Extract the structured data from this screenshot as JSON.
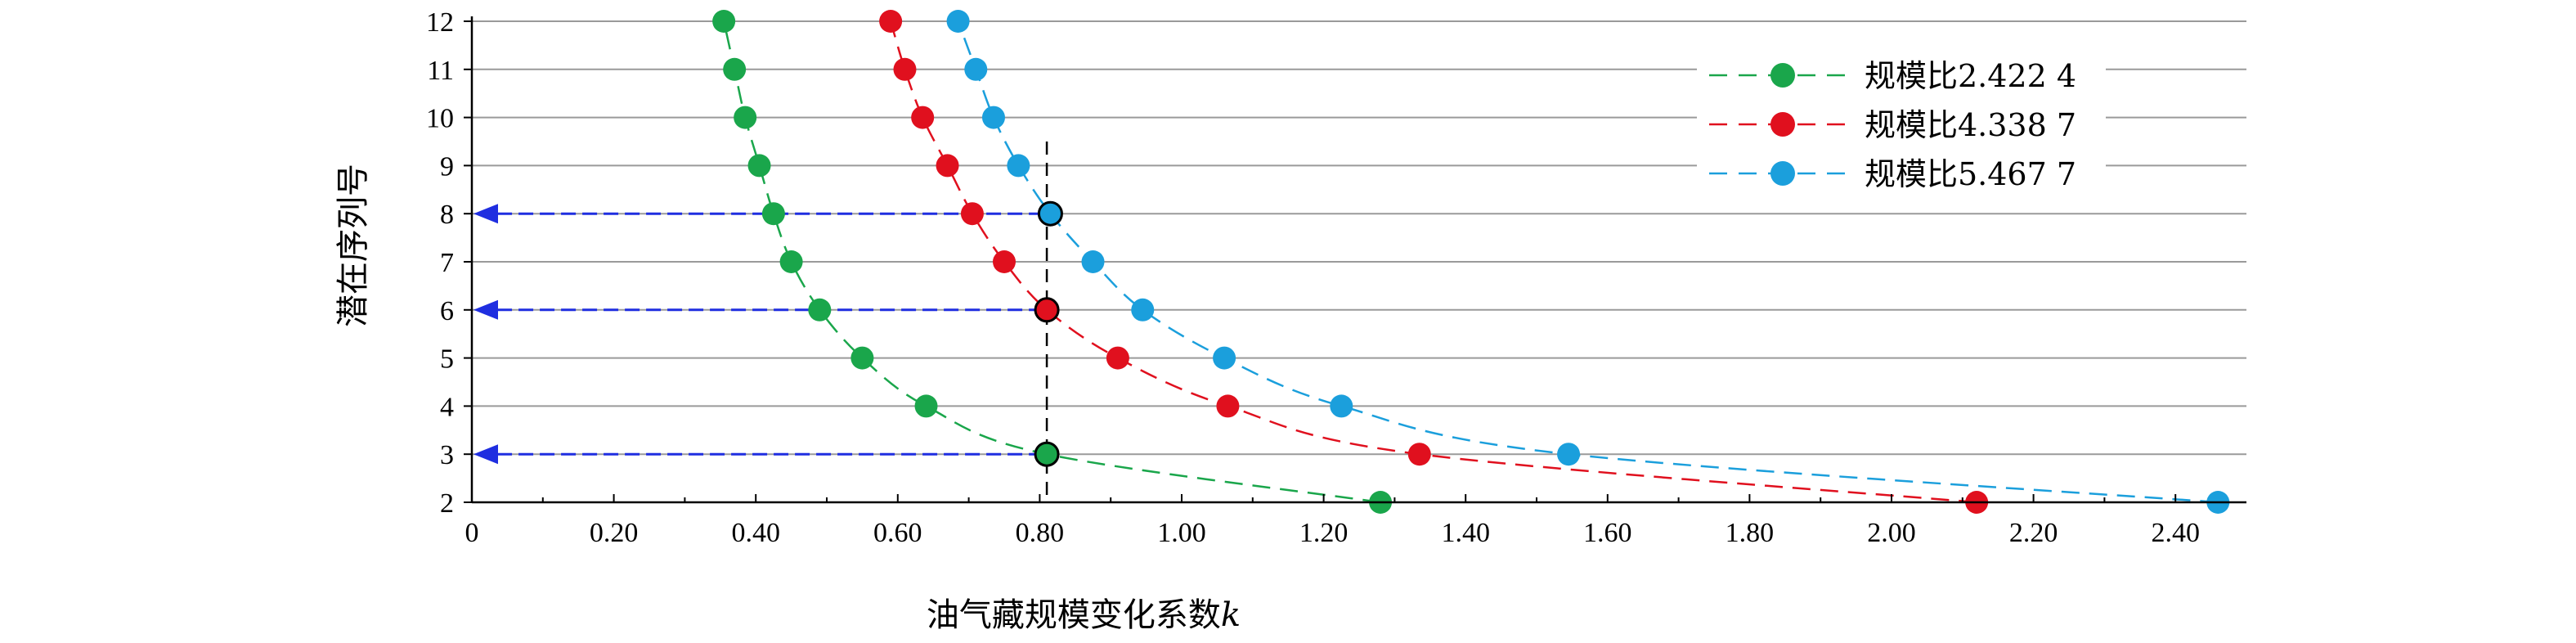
{
  "chart_data": {
    "type": "line",
    "xlabel": "油气藏规模变化系数",
    "xlabel_var": "k",
    "ylabel": "潜在序列号",
    "xlim": [
      0,
      2.5
    ],
    "ylim": [
      2,
      12
    ],
    "x_ticks": [
      0,
      0.2,
      0.4,
      0.6,
      0.8,
      1.0,
      1.2,
      1.4,
      1.6,
      1.8,
      2.0,
      2.2,
      2.4
    ],
    "x_tick_labels": [
      "0",
      "0.20",
      "0.40",
      "0.60",
      "0.80",
      "1.00",
      "1.20",
      "1.40",
      "1.60",
      "1.80",
      "2.00",
      "2.20",
      "2.40"
    ],
    "y_ticks": [
      2,
      3,
      4,
      5,
      6,
      7,
      8,
      9,
      10,
      11,
      12
    ],
    "y_tick_labels": [
      "2",
      "3",
      "4",
      "5",
      "6",
      "7",
      "8",
      "9",
      "10",
      "11",
      "12"
    ],
    "grid": "horizontal",
    "legend_position": "top-right",
    "series": [
      {
        "name": "规模比2.422 4",
        "color": "#1aa64b",
        "x": [
          1.28,
          0.81,
          0.64,
          0.55,
          0.49,
          0.45,
          0.425,
          0.405,
          0.385,
          0.37,
          0.355
        ],
        "y": [
          2,
          3,
          4,
          5,
          6,
          7,
          8,
          9,
          10,
          11,
          12
        ]
      },
      {
        "name": "规模比4.338 7",
        "color": "#e0101e",
        "x": [
          2.12,
          1.335,
          1.065,
          0.91,
          0.81,
          0.75,
          0.705,
          0.67,
          0.635,
          0.61,
          0.59
        ],
        "y": [
          2,
          3,
          4,
          5,
          6,
          7,
          8,
          9,
          10,
          11,
          12
        ]
      },
      {
        "name": "规模比5.467 7",
        "color": "#1b9fdc",
        "x": [
          2.46,
          1.545,
          1.225,
          1.06,
          0.945,
          0.875,
          0.815,
          0.77,
          0.735,
          0.71,
          0.685
        ],
        "y": [
          2,
          3,
          4,
          5,
          6,
          7,
          8,
          9,
          10,
          11,
          12
        ]
      }
    ],
    "reference_line": {
      "x": 0.81,
      "y_from": 2,
      "y_to": 9.5
    },
    "annotations": [
      {
        "type": "arrow",
        "y": 8,
        "x_from": 0.81,
        "x_to": 0,
        "color": "#1f2ee0"
      },
      {
        "type": "arrow",
        "y": 6,
        "x_from": 0.81,
        "x_to": 0,
        "color": "#1f2ee0"
      },
      {
        "type": "arrow",
        "y": 3,
        "x_from": 0.81,
        "x_to": 0,
        "color": "#1f2ee0"
      }
    ],
    "highlighted_points": [
      {
        "series": 0,
        "y": 3
      },
      {
        "series": 1,
        "y": 6
      },
      {
        "series": 2,
        "y": 8
      }
    ]
  }
}
